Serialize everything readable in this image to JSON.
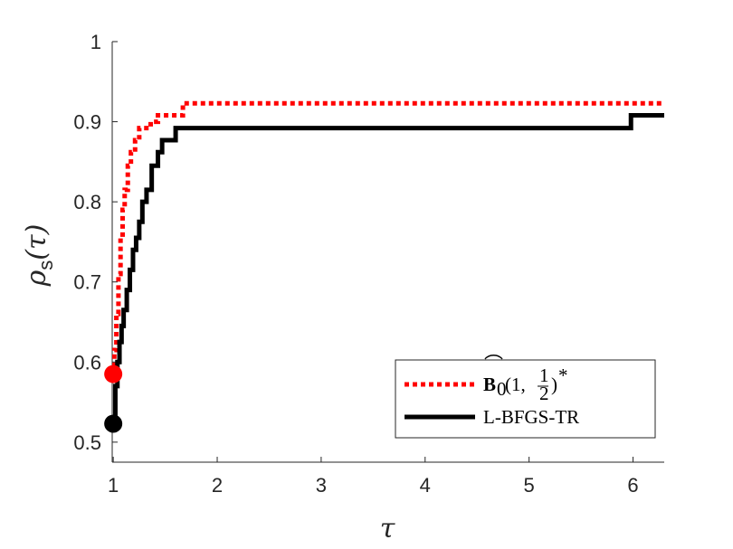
{
  "chart_data": {
    "type": "line",
    "title": "",
    "xlabel": "τ",
    "ylabel_main": "ρ",
    "ylabel_sub": "s",
    "ylabel_arg": "(τ)",
    "xlim": [
      0.99,
      6.3
    ],
    "ylim": [
      0.475,
      1.0
    ],
    "xticks": [
      1,
      2,
      3,
      4,
      5,
      6
    ],
    "yticks": [
      0.5,
      0.6,
      0.7,
      0.8,
      0.9,
      1
    ],
    "ytick_labels": [
      "0.5",
      "0.6",
      "0.7",
      "0.8",
      "0.9",
      "1"
    ],
    "grid": false,
    "legend_position": "bottom-right",
    "series": [
      {
        "name": "B̂₀(1, ½)*",
        "color": "#ff0000",
        "style": "dotted",
        "start_marker": {
          "x": 1.0,
          "y": 0.585
        },
        "points": [
          [
            1.0,
            0.585
          ],
          [
            1.01,
            0.615
          ],
          [
            1.03,
            0.66
          ],
          [
            1.05,
            0.71
          ],
          [
            1.07,
            0.755
          ],
          [
            1.09,
            0.79
          ],
          [
            1.11,
            0.815
          ],
          [
            1.14,
            0.845
          ],
          [
            1.17,
            0.862
          ],
          [
            1.21,
            0.877
          ],
          [
            1.25,
            0.892
          ],
          [
            1.36,
            0.9
          ],
          [
            1.43,
            0.908
          ],
          [
            1.67,
            0.923
          ],
          [
            6.3,
            0.923
          ]
        ]
      },
      {
        "name": "L-BFGS-TR",
        "color": "#000000",
        "style": "solid",
        "start_marker": {
          "x": 1.0,
          "y": 0.523
        },
        "points": [
          [
            1.0,
            0.523
          ],
          [
            1.02,
            0.57
          ],
          [
            1.04,
            0.6
          ],
          [
            1.06,
            0.625
          ],
          [
            1.08,
            0.645
          ],
          [
            1.1,
            0.665
          ],
          [
            1.13,
            0.69
          ],
          [
            1.16,
            0.715
          ],
          [
            1.19,
            0.74
          ],
          [
            1.22,
            0.755
          ],
          [
            1.25,
            0.775
          ],
          [
            1.28,
            0.8
          ],
          [
            1.32,
            0.815
          ],
          [
            1.37,
            0.845
          ],
          [
            1.43,
            0.862
          ],
          [
            1.47,
            0.877
          ],
          [
            1.6,
            0.892
          ],
          [
            5.98,
            0.908
          ],
          [
            6.3,
            0.908
          ]
        ]
      }
    ]
  },
  "legend": {
    "entries": [
      {
        "label_main": "B",
        "label_rest": "0(1, ",
        "frac_num": "1",
        "frac_den": "2",
        "label_end": ")*"
      },
      {
        "label": "L-BFGS-TR"
      }
    ]
  }
}
